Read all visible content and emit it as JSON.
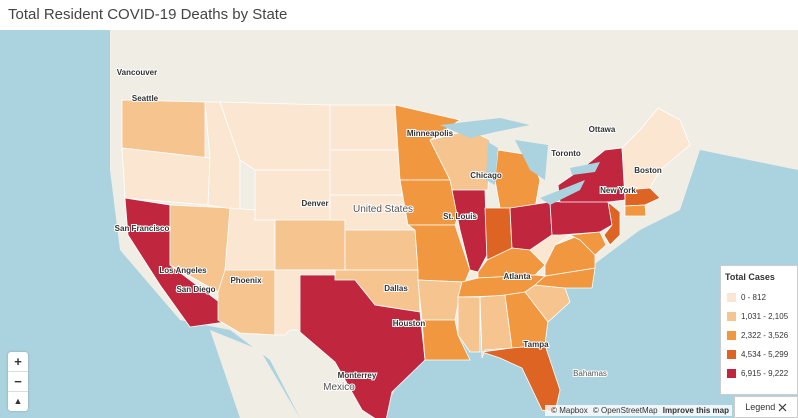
{
  "header": {
    "title": "Total Resident COVID-19 Deaths by State"
  },
  "map": {
    "place_labels": [
      "Vancouver",
      "Seattle",
      "Minneapolis",
      "Ottawa",
      "Toronto",
      "Chicago",
      "Boston",
      "New York",
      "Denver",
      "United States",
      "St. Louis",
      "San Francisco",
      "Los Angeles",
      "San Diego",
      "Phoenix",
      "Dallas",
      "Atlanta",
      "Houston",
      "Tampa",
      "Monterrey",
      "Mexico",
      "Bahamas"
    ],
    "controls": {
      "zoom_in": "+",
      "zoom_out": "−",
      "compass": "▲"
    },
    "attribution": [
      "© Mapbox",
      "© OpenStreetMap",
      "Improve this map"
    ]
  },
  "legend": {
    "title": "Total Cases",
    "items": [
      {
        "label": "0 - 812",
        "color": "#fbe6d1"
      },
      {
        "label": "1,031 - 2,105",
        "color": "#f6c48e"
      },
      {
        "label": "2,322 - 3,526",
        "color": "#f0973f"
      },
      {
        "label": "4,534 - 5,299",
        "color": "#de6424"
      },
      {
        "label": "6,915 - 9,222",
        "color": "#c1263f"
      }
    ],
    "button": "Legend"
  }
}
